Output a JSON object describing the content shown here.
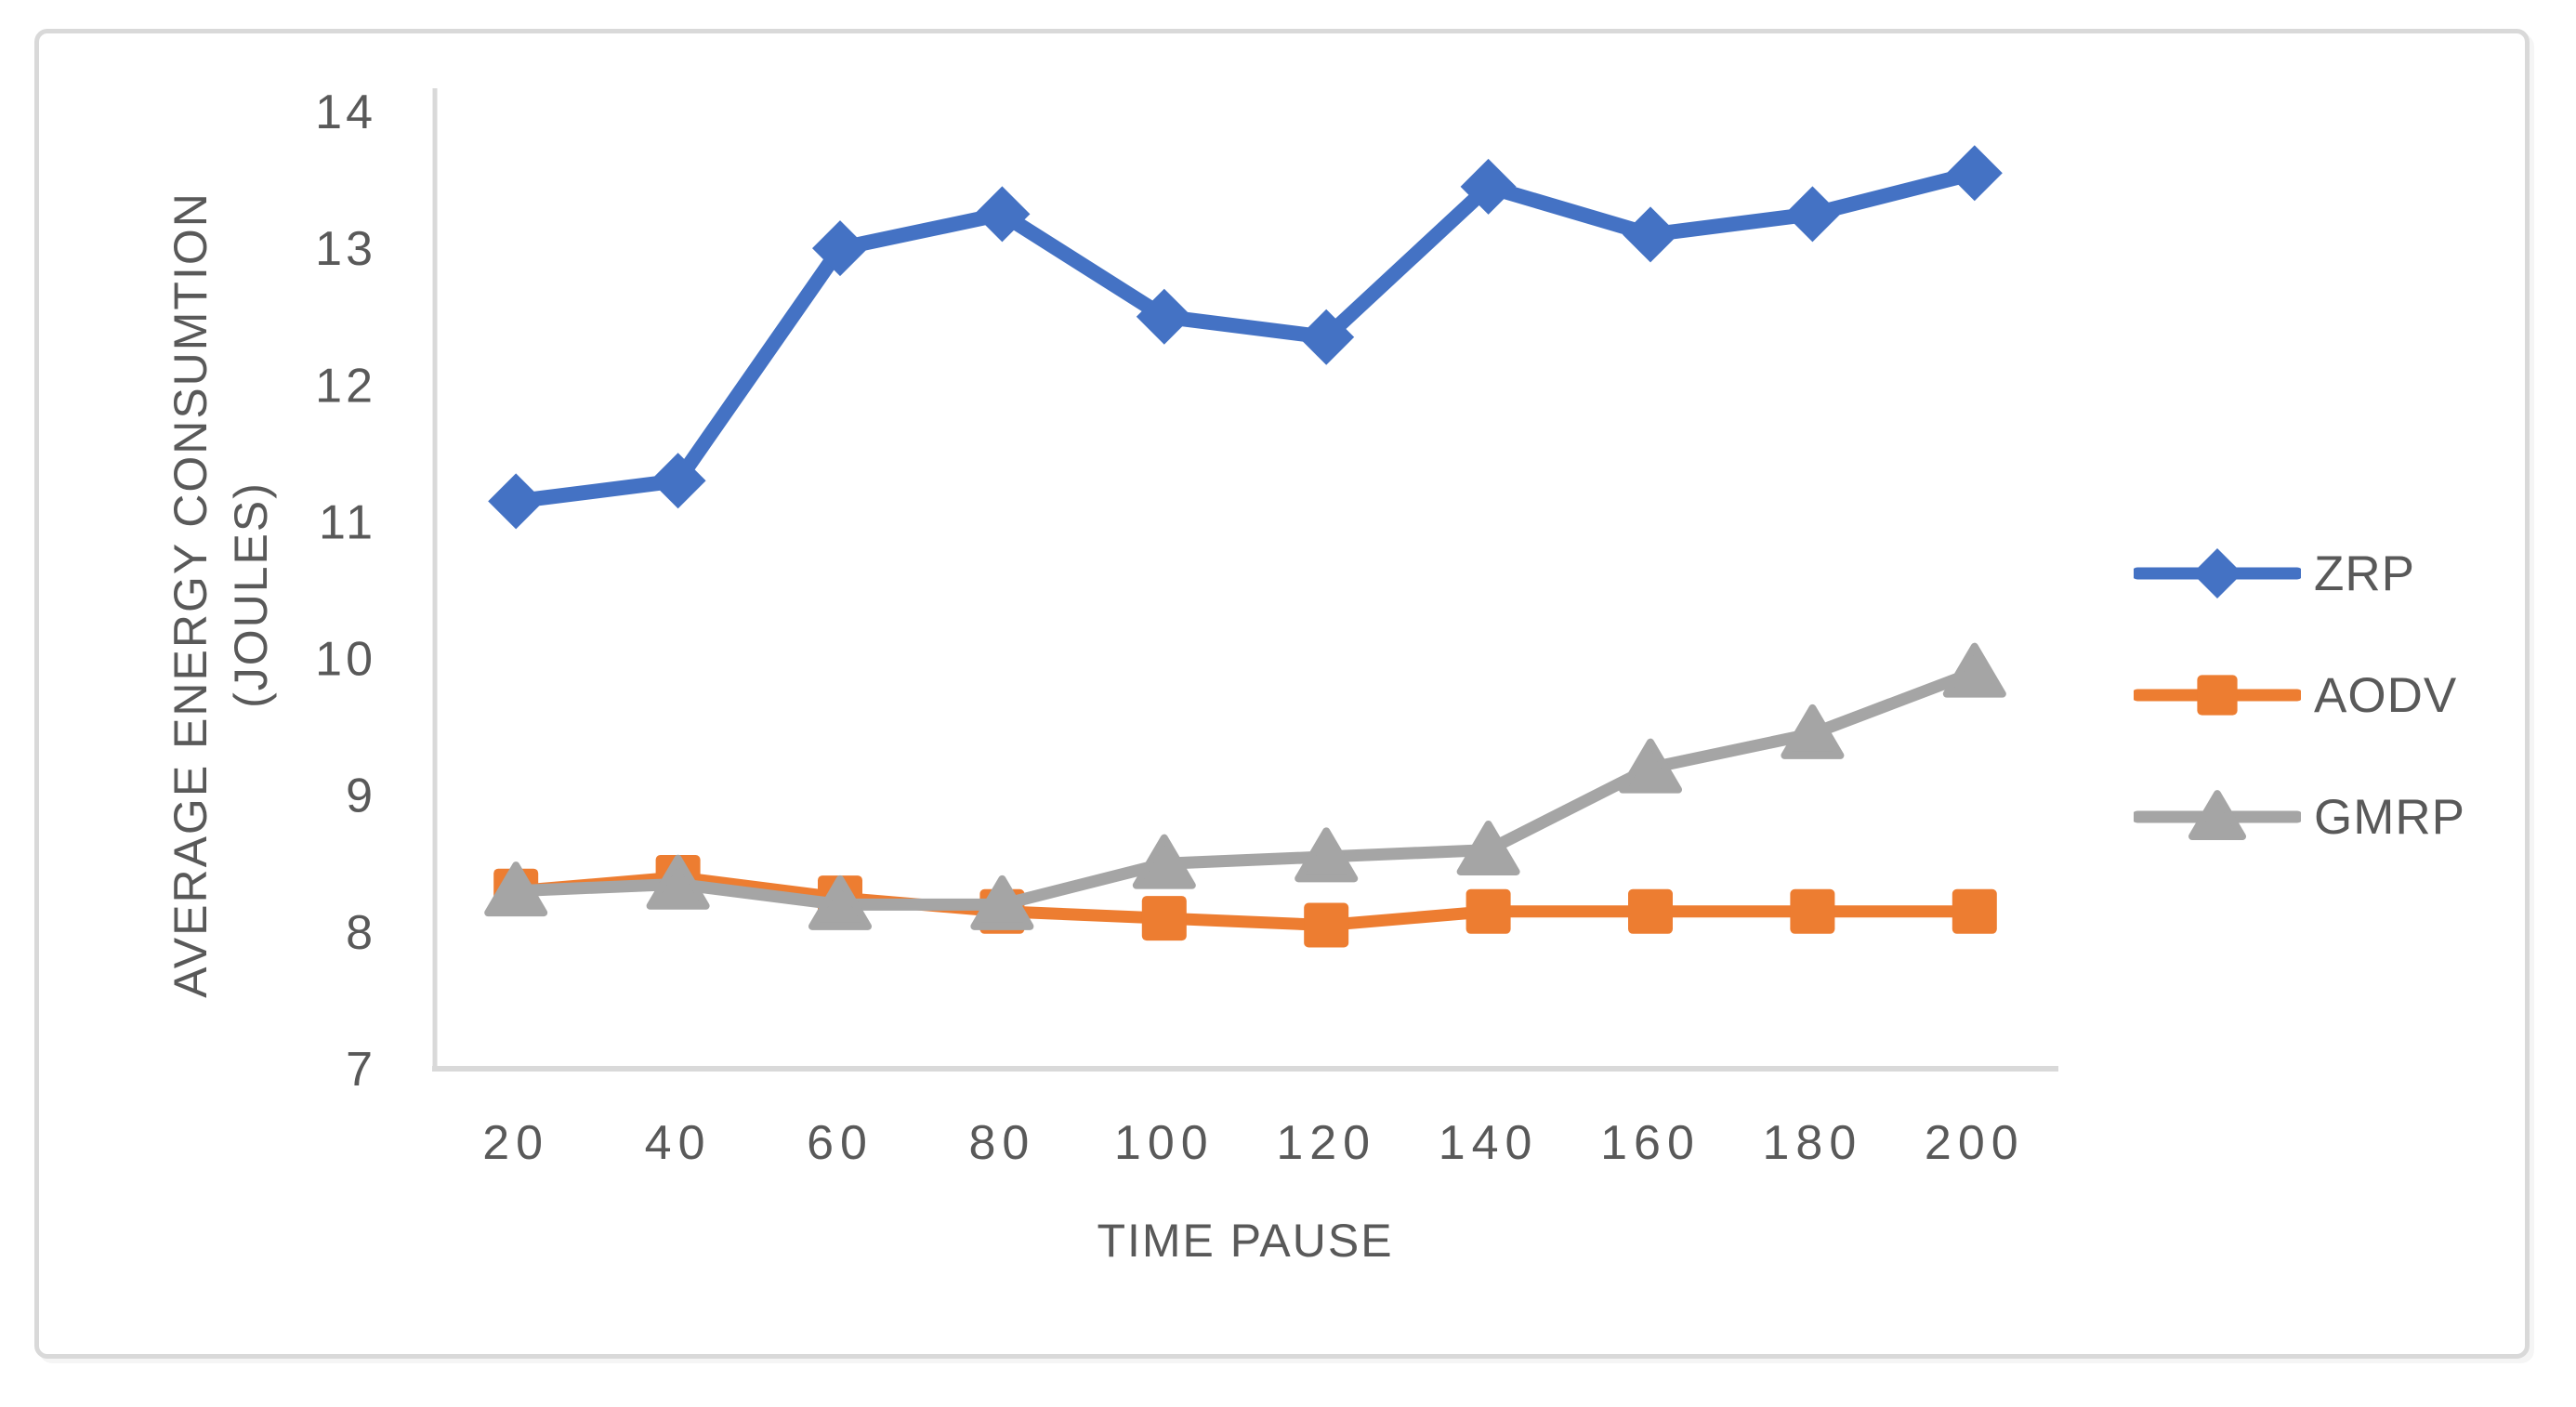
{
  "figure": {
    "background": "#ffffff",
    "border_color": "#D9D9D9"
  },
  "axes": {
    "y_title_line1": "AVERAGE ENERGY CONSUMTION",
    "y_title_line2": "(JOULES)",
    "x_title": "TIME PAUSE",
    "text_color": "#595959",
    "axis_line_color": "#D9D9D9"
  },
  "chart_data": {
    "type": "line",
    "title": "",
    "xlabel": "TIME PAUSE",
    "ylabel": "AVERAGE ENERGY CONSUMTION (JOULES)",
    "categories": [
      20,
      40,
      60,
      80,
      100,
      120,
      140,
      160,
      180,
      200
    ],
    "y_ticks": [
      7,
      8,
      9,
      10,
      11,
      12,
      13,
      14
    ],
    "ylim": [
      7,
      14
    ],
    "grid": false,
    "legend_position": "right",
    "series": [
      {
        "name": "ZRP",
        "color": "#4472C4",
        "marker": "diamond",
        "values": [
          11.15,
          11.3,
          13.0,
          13.25,
          12.5,
          12.35,
          13.45,
          13.1,
          13.25,
          13.55
        ]
      },
      {
        "name": "AODV",
        "color": "#ED7D31",
        "marker": "square",
        "values": [
          8.3,
          8.4,
          8.25,
          8.15,
          8.1,
          8.05,
          8.15,
          8.15,
          8.15,
          8.15
        ]
      },
      {
        "name": "GMRP",
        "color": "#A5A5A5",
        "marker": "triangle",
        "values": [
          8.3,
          8.35,
          8.2,
          8.2,
          8.5,
          8.55,
          8.6,
          9.2,
          9.45,
          9.9
        ]
      }
    ]
  }
}
